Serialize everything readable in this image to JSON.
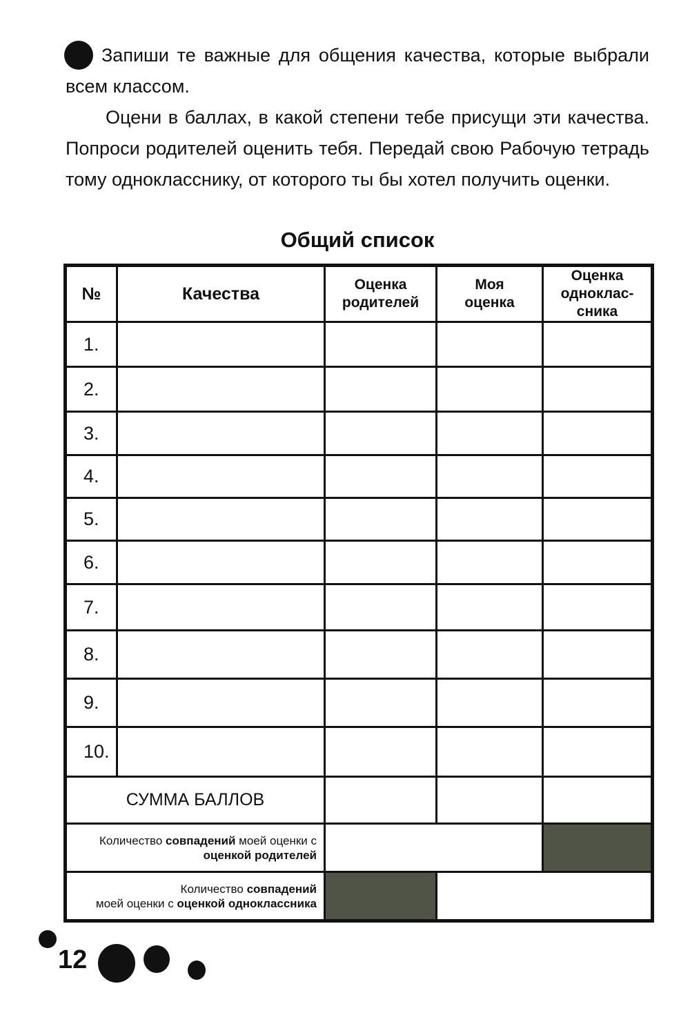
{
  "instructions": {
    "paragraph1": "Запиши те важные для общения качества, которые выбрали всем классом.",
    "paragraph2": "Оцени в баллах, в какой степени тебе присущи эти качества.  Попроси родителей оценить тебя. Передай свою Рабочую тетрадь тому однокласснику, от которого ты бы хотел получить оценки."
  },
  "table_title": "Общий список",
  "table": {
    "headers": [
      "№",
      "Качества",
      "Оценка родителей",
      "Моя оценка",
      "Оценка однoклас-сника"
    ],
    "rows": [
      "1.",
      "2.",
      "3.",
      "4.",
      "5.",
      "6.",
      "7.",
      "8.",
      "9.",
      "10."
    ],
    "sum_label": "СУММА БАЛЛОВ",
    "match_parents": {
      "pre": "Количество ",
      "b1": "совпадений",
      "mid": " моей оценки с ",
      "b2": "оценкой родителей"
    },
    "match_classmate": {
      "pre": "Количество ",
      "b1": "совпадений",
      "mid": " моей оценки с ",
      "b2": "оценкой одноклассника"
    },
    "shaded_color": "#4f5447"
  },
  "page_number": "12"
}
